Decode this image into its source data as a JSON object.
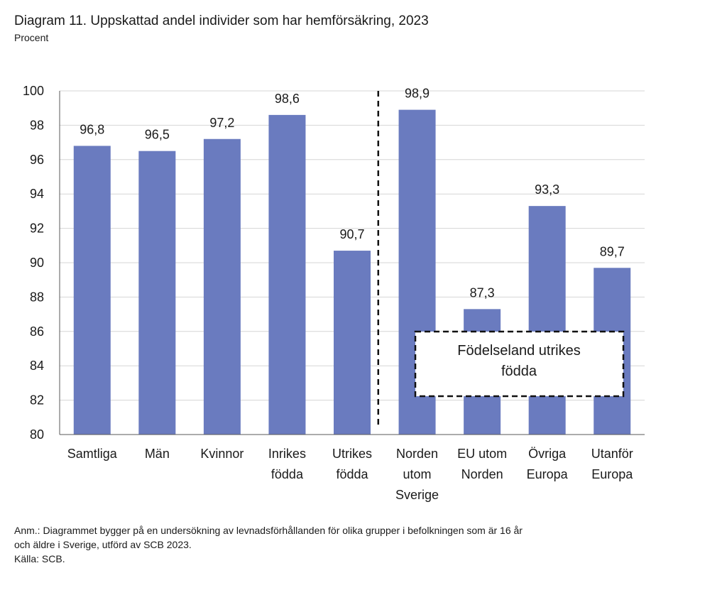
{
  "title": "Diagram 11. Uppskattad andel individer som har hemförsäkring, 2023",
  "subtitle": "Procent",
  "chart_data": {
    "type": "bar",
    "categories": [
      [
        "Samtliga"
      ],
      [
        "Män"
      ],
      [
        "Kvinnor"
      ],
      [
        "Inrikes",
        "födda"
      ],
      [
        "Utrikes",
        "födda"
      ],
      [
        "Norden",
        "utom",
        "Sverige"
      ],
      [
        "EU utom",
        "Norden"
      ],
      [
        "Övriga",
        "Europa"
      ],
      [
        "Utanför",
        "Europa"
      ]
    ],
    "values": [
      96.8,
      96.5,
      97.2,
      98.6,
      90.7,
      98.9,
      87.3,
      93.3,
      89.7
    ],
    "value_labels": [
      "96,8",
      "96,5",
      "97,2",
      "98,6",
      "90,7",
      "98,9",
      "87,3",
      "93,3",
      "89,7"
    ],
    "ylim": [
      80,
      100
    ],
    "yticks": [
      80,
      82,
      84,
      86,
      88,
      90,
      92,
      94,
      96,
      98,
      100
    ],
    "bar_color": "#6a7bbf",
    "grid": true,
    "group_divider_after_index": 4,
    "annotation": [
      "Födelseland utrikes",
      "födda"
    ]
  },
  "notes": [
    "Anm.: Diagrammet bygger på en undersökning av levnadsförhållanden för olika grupper i befolkningen som är 16 år",
    "och äldre i Sverige, utförd av SCB 2023.",
    "Källa: SCB."
  ]
}
